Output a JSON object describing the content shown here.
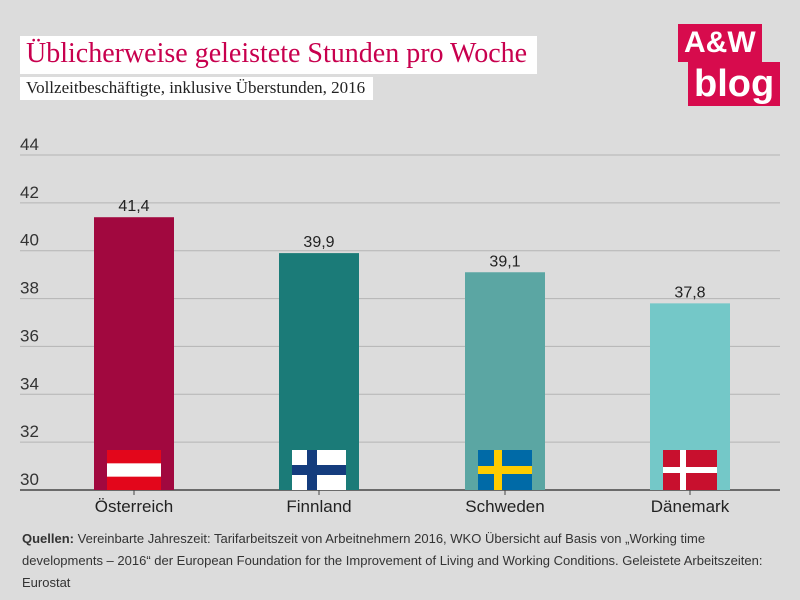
{
  "header": {
    "title": "Üblicherweise geleistete Stunden pro Woche",
    "subtitle": "Vollzeitbeschäftigte, inklusive Überstunden, 2016"
  },
  "logo": {
    "line1": "A&W",
    "line2": "blog"
  },
  "chart_data": {
    "type": "bar",
    "categories": [
      "Österreich",
      "Finnland",
      "Schweden",
      "Dänemark"
    ],
    "values": [
      41.4,
      39.9,
      39.1,
      37.8
    ],
    "value_labels": [
      "41,4",
      "39,9",
      "39,1",
      "37,8"
    ],
    "colors": [
      "#a1083f",
      "#1b7b78",
      "#5ba6a3",
      "#74c8c8"
    ],
    "flag_icons": [
      "austria-flag-icon",
      "finland-flag-icon",
      "sweden-flag-icon",
      "denmark-flag-icon"
    ],
    "ylim": [
      30,
      44
    ],
    "yticks": [
      30,
      32,
      34,
      36,
      38,
      40,
      42,
      44
    ],
    "grid": true,
    "title": "Üblicherweise geleistete Stunden pro Woche",
    "xlabel": "",
    "ylabel": ""
  },
  "source": {
    "label": "Quellen:",
    "text": "Vereinbarte Jahreszeit: Tarifarbeitszeit von Arbeitnehmern 2016, WKO Übersicht auf Basis von „Working time developments – 2016“ der European Foundation for the Improvement of Living and Working Conditions. Geleistete Arbeitszeiten: Eurostat"
  }
}
